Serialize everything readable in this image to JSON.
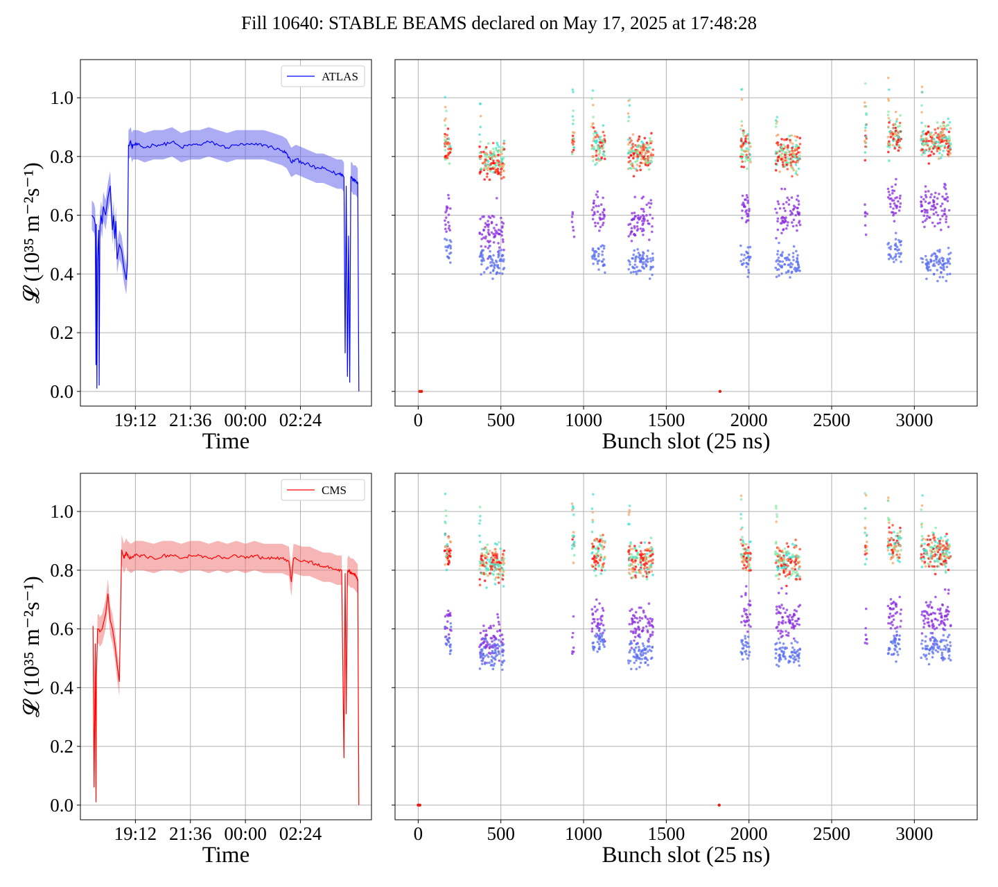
{
  "title": "Fill 10640: STABLE BEAMS declared on May 17, 2025 at 17:48:28",
  "colors": {
    "atlas_line": "#0000ff",
    "atlas_band": "#5a5aeb",
    "cms_line": "#ff0000",
    "cms_band": "#f06e6e",
    "grid": "#b0b0b0"
  },
  "chart_data": [
    {
      "type": "line",
      "panel": "ATLAS luminosity vs time",
      "xlabel": "Time",
      "ylabel": "𝓛 (10³⁵ m⁻²s⁻¹)",
      "xticks": [
        "19:12",
        "21:36",
        "00:00",
        "02:24"
      ],
      "yticks": [
        "0.0",
        "0.2",
        "0.4",
        "0.6",
        "0.8",
        "1.0"
      ],
      "xlim_hours": [
        16.8,
        29.5
      ],
      "ylim": [
        -0.05,
        1.13
      ],
      "grid": true,
      "legend": "top-right",
      "series": [
        {
          "name": "ATLAS",
          "x_hours": [
            17.3,
            17.4,
            17.45,
            17.48,
            17.5,
            17.52,
            17.55,
            17.6,
            17.62,
            17.65,
            17.68,
            17.7,
            17.75,
            17.8,
            17.9,
            18.0,
            18.1,
            18.2,
            18.25,
            18.3,
            18.35,
            18.4,
            18.5,
            18.6,
            18.7,
            18.8,
            18.85,
            18.9,
            19.0,
            19.05,
            19.1,
            19.3,
            19.6,
            20.0,
            20.4,
            20.8,
            21.2,
            21.6,
            22.0,
            22.4,
            22.8,
            23.2,
            23.6,
            24.0,
            24.4,
            24.8,
            25.2,
            25.6,
            25.8,
            26.0,
            26.2,
            26.5,
            26.8,
            27.1,
            27.4,
            27.7,
            28.0,
            28.2,
            28.3,
            28.35,
            28.4,
            28.45,
            28.5,
            28.55,
            28.6,
            28.65,
            28.7,
            28.8,
            28.9,
            28.95
          ],
          "y": [
            0.6,
            0.59,
            0.57,
            0.09,
            0.57,
            0.01,
            0.45,
            0.55,
            0.02,
            0.56,
            0.58,
            0.6,
            0.57,
            0.63,
            0.6,
            0.66,
            0.7,
            0.55,
            0.6,
            0.52,
            0.58,
            0.45,
            0.5,
            0.48,
            0.42,
            0.38,
            0.43,
            0.84,
            0.85,
            0.83,
            0.84,
            0.84,
            0.83,
            0.84,
            0.84,
            0.85,
            0.83,
            0.84,
            0.84,
            0.85,
            0.84,
            0.83,
            0.84,
            0.84,
            0.84,
            0.84,
            0.83,
            0.82,
            0.81,
            0.78,
            0.79,
            0.78,
            0.77,
            0.76,
            0.76,
            0.75,
            0.74,
            0.74,
            0.73,
            0.13,
            0.7,
            0.05,
            0.53,
            0.03,
            0.73,
            0.73,
            0.72,
            0.72,
            0.71,
            0.0
          ],
          "band": 0.05
        }
      ]
    },
    {
      "type": "scatter",
      "panel": "ATLAS bunch-by-bunch luminosity",
      "xlabel": "Bunch slot (25 ns)",
      "xticks": [
        "0",
        "500",
        "1000",
        "1500",
        "2000",
        "2500",
        "3000"
      ],
      "xlim": [
        -140,
        3380
      ],
      "ylim": [
        -0.05,
        1.13
      ],
      "grid": true,
      "trains": [
        {
          "start": 160,
          "end": 200,
          "top": 0.83,
          "mid": 0.59,
          "low": 0.47
        },
        {
          "start": 370,
          "end": 520,
          "top": 0.79,
          "mid": 0.55,
          "low": 0.44
        },
        {
          "start": 930,
          "end": 945,
          "top": 0.85,
          "mid": 0.56,
          "low": 0.0
        },
        {
          "start": 1050,
          "end": 1130,
          "top": 0.84,
          "mid": 0.61,
          "low": 0.46
        },
        {
          "start": 1270,
          "end": 1420,
          "top": 0.81,
          "mid": 0.58,
          "low": 0.44
        },
        {
          "start": 1950,
          "end": 2010,
          "top": 0.83,
          "mid": 0.62,
          "low": 0.45
        },
        {
          "start": 2160,
          "end": 2310,
          "top": 0.81,
          "mid": 0.61,
          "low": 0.44
        },
        {
          "start": 2700,
          "end": 2715,
          "top": 0.86,
          "mid": 0.57,
          "low": 0.0
        },
        {
          "start": 2840,
          "end": 2920,
          "top": 0.87,
          "mid": 0.64,
          "low": 0.48
        },
        {
          "start": 3040,
          "end": 3220,
          "top": 0.85,
          "mid": 0.63,
          "low": 0.44
        }
      ],
      "isolated_points": [
        [
          10,
          0.0
        ],
        [
          20,
          0.0
        ],
        [
          1825,
          0.0
        ]
      ]
    },
    {
      "type": "line",
      "panel": "CMS luminosity vs time",
      "xlabel": "Time",
      "ylabel": "𝓛 (10³⁵ m⁻²s⁻¹)",
      "xticks": [
        "19:12",
        "21:36",
        "00:00",
        "02:24"
      ],
      "yticks": [
        "0.0",
        "0.2",
        "0.4",
        "0.6",
        "0.8",
        "1.0"
      ],
      "xlim_hours": [
        16.8,
        29.5
      ],
      "ylim": [
        -0.05,
        1.13
      ],
      "grid": true,
      "legend": "top-right",
      "series": [
        {
          "name": "CMS",
          "x_hours": [
            17.35,
            17.4,
            17.45,
            17.48,
            17.5,
            17.55,
            17.6,
            17.65,
            17.75,
            17.9,
            18.0,
            18.1,
            18.2,
            18.3,
            18.4,
            18.5,
            18.6,
            18.7,
            18.75,
            18.8,
            18.85,
            19.0,
            19.2,
            19.5,
            20.0,
            20.4,
            20.8,
            21.2,
            21.6,
            22.0,
            22.4,
            22.8,
            23.2,
            23.6,
            24.0,
            24.4,
            24.8,
            25.2,
            25.6,
            25.9,
            26.0,
            26.1,
            26.5,
            26.8,
            27.1,
            27.4,
            27.7,
            28.0,
            28.2,
            28.3,
            28.35,
            28.4,
            28.45,
            28.5,
            28.6,
            28.7,
            28.8,
            28.9,
            28.95
          ],
          "y": [
            0.61,
            0.06,
            0.55,
            0.01,
            0.44,
            0.6,
            0.6,
            0.59,
            0.6,
            0.65,
            0.72,
            0.63,
            0.6,
            0.55,
            0.48,
            0.42,
            0.87,
            0.84,
            0.85,
            0.86,
            0.85,
            0.84,
            0.85,
            0.85,
            0.84,
            0.85,
            0.85,
            0.84,
            0.85,
            0.85,
            0.84,
            0.85,
            0.84,
            0.85,
            0.84,
            0.85,
            0.84,
            0.84,
            0.84,
            0.83,
            0.76,
            0.84,
            0.83,
            0.83,
            0.82,
            0.81,
            0.81,
            0.8,
            0.8,
            0.16,
            0.79,
            0.31,
            0.79,
            0.8,
            0.79,
            0.79,
            0.78,
            0.77,
            0.0
          ],
          "band": 0.05
        }
      ]
    },
    {
      "type": "scatter",
      "panel": "CMS bunch-by-bunch luminosity",
      "xlabel": "Bunch slot (25 ns)",
      "xticks": [
        "0",
        "500",
        "1000",
        "1500",
        "2000",
        "2500",
        "3000"
      ],
      "xlim": [
        -140,
        3380
      ],
      "ylim": [
        -0.05,
        1.13
      ],
      "grid": true,
      "trains": [
        {
          "start": 160,
          "end": 200,
          "top": 0.86,
          "mid": 0.63,
          "low": 0.56
        },
        {
          "start": 370,
          "end": 520,
          "top": 0.82,
          "mid": 0.57,
          "low": 0.51
        },
        {
          "start": 930,
          "end": 945,
          "top": 0.88,
          "mid": 0.57,
          "low": 0.0
        },
        {
          "start": 1050,
          "end": 1130,
          "top": 0.86,
          "mid": 0.64,
          "low": 0.56
        },
        {
          "start": 1270,
          "end": 1420,
          "top": 0.83,
          "mid": 0.61,
          "low": 0.52
        },
        {
          "start": 1950,
          "end": 2010,
          "top": 0.86,
          "mid": 0.66,
          "low": 0.54
        },
        {
          "start": 2160,
          "end": 2310,
          "top": 0.83,
          "mid": 0.63,
          "low": 0.52
        },
        {
          "start": 2700,
          "end": 2715,
          "top": 0.88,
          "mid": 0.59,
          "low": 0.0
        },
        {
          "start": 2840,
          "end": 2920,
          "top": 0.88,
          "mid": 0.66,
          "low": 0.55
        },
        {
          "start": 3040,
          "end": 3220,
          "top": 0.86,
          "mid": 0.65,
          "low": 0.53
        }
      ],
      "isolated_points": [
        [
          0,
          0.0
        ],
        [
          10,
          0.0
        ],
        [
          1820,
          0.0
        ]
      ]
    }
  ]
}
